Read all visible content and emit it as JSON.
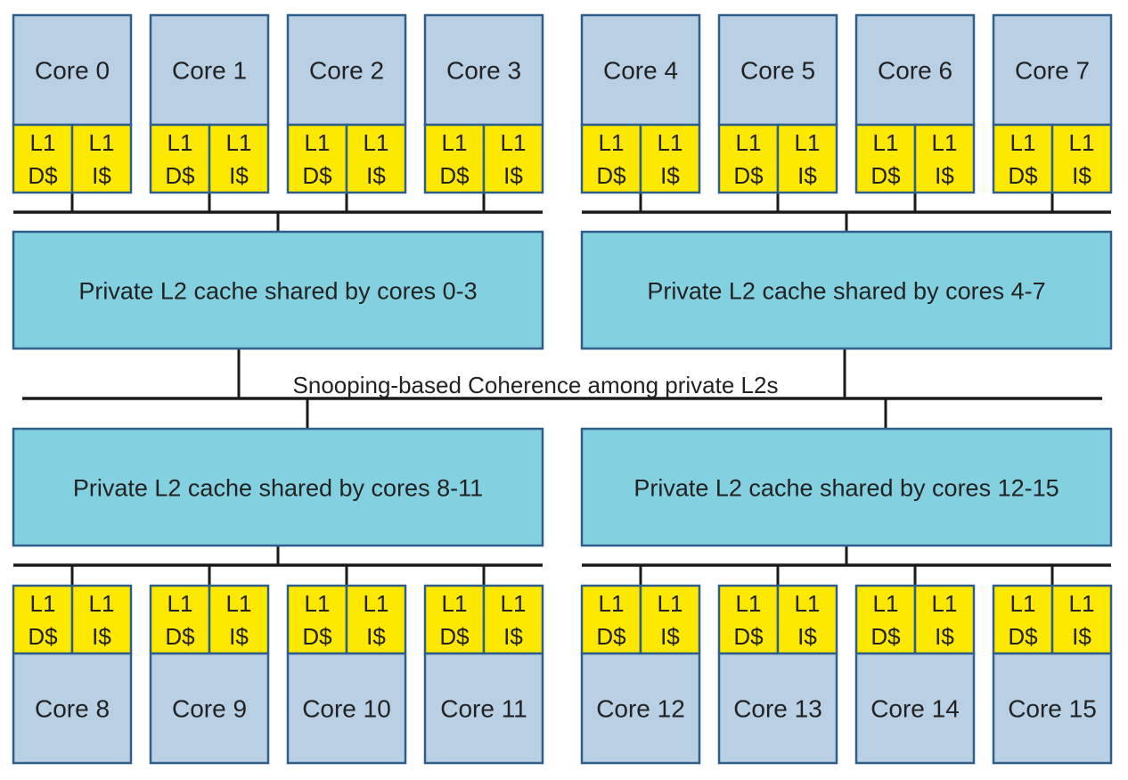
{
  "colors": {
    "core_fill": "#b8cfe4",
    "cache_fill": "#fde800",
    "l2_fill": "#83d0e0",
    "border": "#2e5f8a",
    "bus": "#1a1a1a"
  },
  "l1": {
    "data_line1": "L1",
    "data_line2": "D$",
    "instr_line1": "L1",
    "instr_line2": "I$"
  },
  "cores": [
    "Core 0",
    "Core 1",
    "Core 2",
    "Core 3",
    "Core 4",
    "Core 5",
    "Core 6",
    "Core 7",
    "Core 8",
    "Core 9",
    "Core 10",
    "Core 11",
    "Core 12",
    "Core 13",
    "Core 14",
    "Core 15"
  ],
  "l2_caches": [
    "Private L2 cache shared by cores 0-3",
    "Private L2 cache shared by cores 4-7",
    "Private L2 cache shared by cores 8-11",
    "Private L2 cache shared by cores 12-15"
  ],
  "coherence_label": "Snooping-based Coherence among private L2s"
}
